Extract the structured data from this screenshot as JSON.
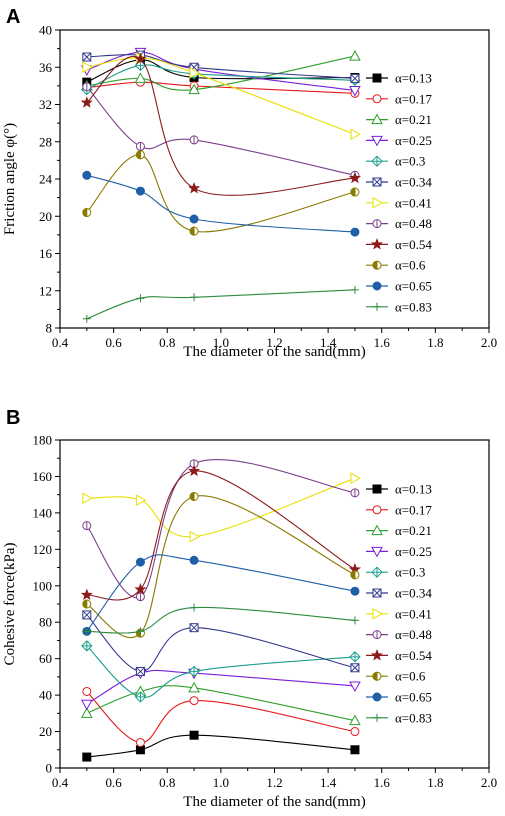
{
  "panels": [
    {
      "letter": "A",
      "chart_data": {
        "type": "scatter",
        "title": "",
        "xlabel": "The diameter of the sand(mm)",
        "ylabel": "Friction angle φ(°)",
        "xlim": [
          0.4,
          2.0
        ],
        "ylim": [
          8,
          40
        ],
        "xticks": [
          "0.4",
          "0.6",
          "0.8",
          "1.0",
          "1.2",
          "1.4",
          "1.6",
          "1.8",
          "2.0"
        ],
        "yticks": [
          "8",
          "12",
          "16",
          "20",
          "24",
          "28",
          "32",
          "36",
          "40"
        ],
        "grid": false,
        "legend_position": "right",
        "x": [
          0.5,
          0.7,
          0.9,
          1.5
        ],
        "series": [
          {
            "name": "α=0.13",
            "color": "#000000",
            "marker": "square-filled",
            "values": [
              34.4,
              36.8,
              34.9,
              34.9
            ]
          },
          {
            "name": "α=0.17",
            "color": "#e41a1c",
            "marker": "circle-open",
            "values": [
              33.8,
              34.4,
              34.0,
              33.2
            ]
          },
          {
            "name": "α=0.21",
            "color": "#2ca02c",
            "marker": "triangle-up-open",
            "values": [
              34.0,
              34.8,
              33.6,
              37.2
            ]
          },
          {
            "name": "α=0.25",
            "color": "#7b1fd6",
            "marker": "triangle-down-open",
            "values": [
              35.7,
              37.6,
              35.8,
              33.5
            ]
          },
          {
            "name": "α=0.3",
            "color": "#1b9e8a",
            "marker": "diamond-cross",
            "values": [
              33.6,
              36.2,
              35.3,
              34.6
            ]
          },
          {
            "name": "α=0.34",
            "color": "#333a8c",
            "marker": "x-box",
            "values": [
              37.1,
              37.3,
              36.0,
              34.8
            ]
          },
          {
            "name": "α=0.41",
            "color": "#e8e000",
            "marker": "triangle-right-open",
            "values": [
              36.0,
              37.0,
              35.4,
              28.8
            ]
          },
          {
            "name": "α=0.48",
            "color": "#7b3f8c",
            "marker": "circle-bar",
            "values": [
              33.9,
              27.5,
              28.2,
              24.4
            ]
          },
          {
            "name": "α=0.54",
            "color": "#8b1a1a",
            "marker": "star",
            "values": [
              32.2,
              36.9,
              23.0,
              24.1
            ]
          },
          {
            "name": "α=0.6",
            "color": "#8a7a00",
            "marker": "circle-half",
            "values": [
              20.4,
              26.6,
              18.4,
              22.6
            ]
          },
          {
            "name": "α=0.65",
            "color": "#1f5fa8",
            "marker": "circle-filled",
            "values": [
              24.4,
              22.7,
              19.7,
              18.3
            ]
          },
          {
            "name": "α=0.83",
            "color": "#2e8b3e",
            "marker": "plus",
            "values": [
              9.0,
              11.2,
              11.3,
              12.1
            ]
          }
        ]
      }
    },
    {
      "letter": "B",
      "chart_data": {
        "type": "scatter",
        "title": "",
        "xlabel": "The diameter of the sand(mm)",
        "ylabel": "Cohesive force(kPa)",
        "xlim": [
          0.4,
          2.0
        ],
        "ylim": [
          0,
          180
        ],
        "xticks": [
          "0.4",
          "0.6",
          "0.8",
          "1.0",
          "1.2",
          "1.4",
          "1.6",
          "1.8",
          "2.0"
        ],
        "yticks": [
          "0",
          "20",
          "40",
          "60",
          "80",
          "100",
          "120",
          "140",
          "160",
          "180"
        ],
        "grid": false,
        "legend_position": "right",
        "x": [
          0.5,
          0.7,
          0.9,
          1.5
        ],
        "series": [
          {
            "name": "α=0.13",
            "color": "#000000",
            "marker": "square-filled",
            "values": [
              6,
              10,
              18,
              10
            ]
          },
          {
            "name": "α=0.17",
            "color": "#e41a1c",
            "marker": "circle-open",
            "values": [
              42,
              14,
              37,
              20
            ]
          },
          {
            "name": "α=0.21",
            "color": "#2ca02c",
            "marker": "triangle-up-open",
            "values": [
              30,
              42,
              44,
              26
            ]
          },
          {
            "name": "α=0.25",
            "color": "#7b1fd6",
            "marker": "triangle-down-open",
            "values": [
              35,
              52,
              52,
              45
            ]
          },
          {
            "name": "α=0.3",
            "color": "#1b9e8a",
            "marker": "diamond-cross",
            "values": [
              67,
              39,
              53,
              61
            ]
          },
          {
            "name": "α=0.34",
            "color": "#333a8c",
            "marker": "x-box",
            "values": [
              84,
              53,
              77,
              55
            ]
          },
          {
            "name": "α=0.41",
            "color": "#e8e000",
            "marker": "triangle-right-open",
            "values": [
              148,
              147,
              127,
              159
            ]
          },
          {
            "name": "α=0.48",
            "color": "#7b3f8c",
            "marker": "circle-bar",
            "values": [
              133,
              94,
              167,
              151
            ]
          },
          {
            "name": "α=0.54",
            "color": "#8b1a1a",
            "marker": "star",
            "values": [
              95,
              98,
              163,
              109
            ]
          },
          {
            "name": "α=0.6",
            "color": "#8a7a00",
            "marker": "circle-half",
            "values": [
              90,
              74,
              149,
              106
            ]
          },
          {
            "name": "α=0.65",
            "color": "#1f5fa8",
            "marker": "circle-filled",
            "values": [
              75,
              113,
              114,
              97
            ]
          },
          {
            "name": "α=0.83",
            "color": "#2e8b3e",
            "marker": "plus",
            "values": [
              75,
              75,
              88,
              81
            ]
          }
        ]
      }
    }
  ]
}
